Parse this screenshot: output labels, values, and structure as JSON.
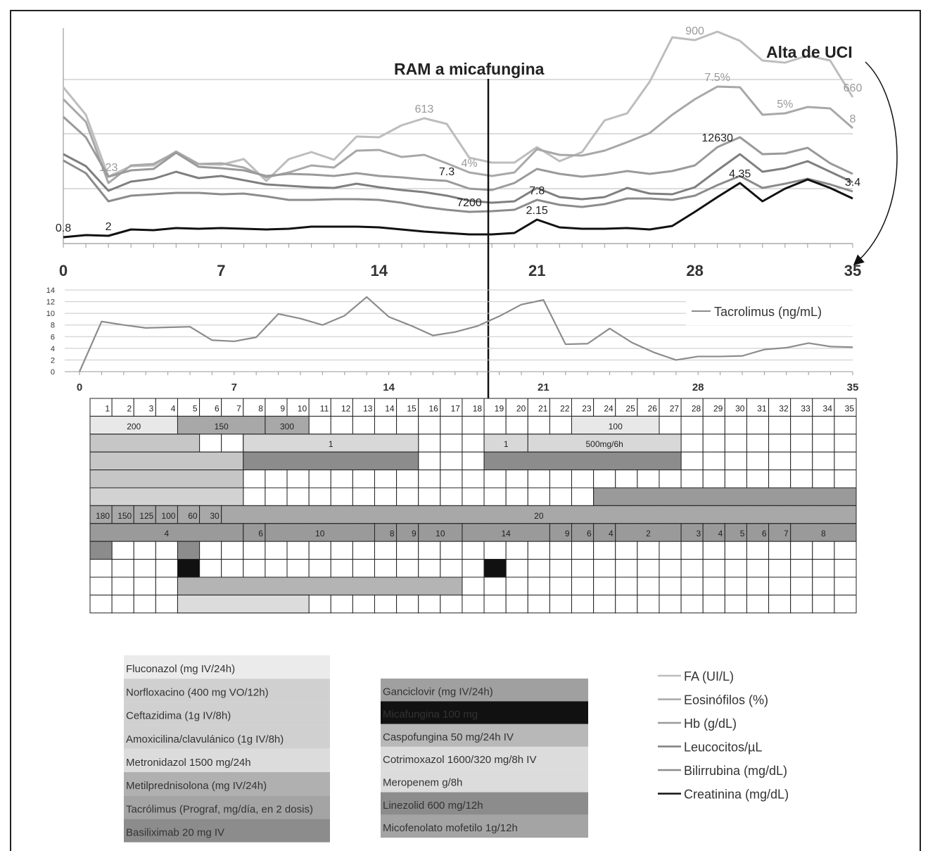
{
  "chart_data": [
    {
      "type": "line",
      "annotations": {
        "reaction": "RAM a micafungina",
        "discharge": "Alta de UCI"
      },
      "x_ticks": [
        "0",
        "7",
        "14",
        "21",
        "28",
        "35"
      ],
      "xlim": [
        0,
        35
      ],
      "grid": true,
      "legend_position": "right",
      "series": [
        {
          "name": "FA (UI/L)",
          "color": "#bdbdbd",
          "values": [
            222,
            183,
            95,
            110,
            111,
            131,
            113,
            112,
            120,
            89,
            120,
            130,
            119,
            152,
            151,
            168,
            178,
            170,
            122,
            115,
            115,
            137,
            117,
            130,
            175,
            185,
            230,
            293,
            289,
            301,
            288,
            260,
            257,
            267,
            260,
            208
          ],
          "labels": [
            {
              "i": 2,
              "text": "123"
            },
            {
              "i": 16,
              "text": "613"
            },
            {
              "i": 28,
              "text": "900"
            },
            {
              "i": 35,
              "text": "660"
            }
          ]
        },
        {
          "name": "Eosinófilos (%)",
          "color": "#a8a8a8",
          "values": [
            205,
            173,
            86,
            111,
            113,
            130,
            113,
            114,
            108,
            94,
            101,
            111,
            108,
            132,
            133,
            123,
            126,
            114,
            101,
            96,
            101,
            134,
            126,
            125,
            132,
            144,
            157,
            183,
            205,
            223,
            222,
            183,
            185,
            194,
            192,
            164
          ],
          "labels": [
            {
              "i": 18,
              "text": "4%"
            },
            {
              "i": 29,
              "text": "7.5%"
            },
            {
              "i": 32,
              "text": "5%"
            },
            {
              "i": 35,
              "text": "8"
            }
          ]
        },
        {
          "name": "Hb (g/dL)",
          "color": "#9a9a9a",
          "values": [
            180,
            151,
            95,
            104,
            106,
            129,
            109,
            107,
            104,
            96,
            99,
            98,
            96,
            100,
            96,
            94,
            91,
            89,
            78,
            76,
            86,
            106,
            99,
            95,
            98,
            103,
            99,
            103,
            111,
            137,
            151,
            127,
            128,
            136,
            114,
            99
          ],
          "labels": [
            {
              "i": 17,
              "text": "7.3"
            },
            {
              "i": 29,
              "text": "12630"
            }
          ]
        },
        {
          "name": "Leucocitos/µL",
          "color": "#7f7f7f",
          "values": [
            127,
            110,
            75,
            88,
            92,
            102,
            93,
            96,
            90,
            84,
            82,
            80,
            79,
            85,
            80,
            76,
            73,
            68,
            61,
            58,
            60,
            79,
            66,
            63,
            66,
            79,
            71,
            70,
            80,
            104,
            127,
            102,
            107,
            117,
            102,
            87
          ],
          "labels": []
        },
        {
          "name": "Bilirrubina (mg/dL)",
          "color": "#8c8c8c",
          "values": [
            118,
            100,
            60,
            68,
            70,
            72,
            72,
            70,
            71,
            67,
            62,
            62,
            63,
            63,
            62,
            58,
            52,
            48,
            45,
            46,
            48,
            62,
            55,
            52,
            56,
            64,
            64,
            62,
            68,
            83,
            96,
            79,
            85,
            92,
            84,
            74
          ],
          "labels": [
            {
              "i": 18,
              "text": "7200"
            },
            {
              "i": 21,
              "text": "7.8"
            },
            {
              "i": 35,
              "text": "3.4"
            }
          ]
        },
        {
          "name": "Creatinina (mg/dL)",
          "color": "#111111",
          "values": [
            9,
            12,
            11,
            20,
            19,
            22,
            21,
            22,
            21,
            20,
            21,
            24,
            24,
            24,
            23,
            20,
            17,
            15,
            13,
            13,
            15,
            34,
            23,
            21,
            21,
            22,
            20,
            25,
            45,
            66,
            86,
            60,
            78,
            91,
            79,
            64
          ],
          "labels": [
            {
              "i": 0,
              "text": "0.8"
            },
            {
              "i": 2,
              "text": "2"
            },
            {
              "i": 21,
              "text": "2.15"
            },
            {
              "i": 30,
              "text": "4.35"
            }
          ]
        }
      ]
    },
    {
      "type": "line",
      "series": [
        {
          "name": "Tacrolimus (ng/mL)",
          "color": "#8c8c8c",
          "values": [
            0,
            8.6,
            8.0,
            7.5,
            7.6,
            7.7,
            5.4,
            5.2,
            5.9,
            9.9,
            9.1,
            8.0,
            9.6,
            12.8,
            9.4,
            7.9,
            6.2,
            6.8,
            7.8,
            9.5,
            11.5,
            12.3,
            4.7,
            4.8,
            7.4,
            5.0,
            3.3,
            2.0,
            2.6,
            2.6,
            2.7,
            3.8,
            4.1,
            4.9,
            4.3,
            4.2
          ]
        }
      ],
      "x_ticks": [
        "0",
        "7",
        "14",
        "21",
        "28",
        "35"
      ],
      "y_ticks": [
        "0",
        "2",
        "4",
        "6",
        "8",
        "10",
        "12",
        "14"
      ],
      "xlim": [
        0,
        35
      ],
      "ylim": [
        0,
        14
      ],
      "grid": true,
      "legend_position": "right"
    },
    {
      "type": "table",
      "day_headers": [
        "1",
        "2",
        "3",
        "4",
        "5",
        "6",
        "7",
        "8",
        "9",
        "10",
        "11",
        "12",
        "13",
        "14",
        "15",
        "16",
        "17",
        "18",
        "19",
        "20",
        "21",
        "22",
        "23",
        "24",
        "25",
        "26",
        "27",
        "28",
        "29",
        "30",
        "31",
        "32",
        "33",
        "34",
        "35"
      ],
      "rows": [
        {
          "bars": [
            {
              "start": 1,
              "end": 4,
              "color": "#e8e8e8",
              "label": "200"
            },
            {
              "start": 5,
              "end": 8,
              "color": "#a8a8a8",
              "label": "150"
            },
            {
              "start": 9,
              "end": 10,
              "color": "#a8a8a8",
              "label": "300"
            },
            {
              "start": 23,
              "end": 26,
              "color": "#e8e8e8",
              "label": "100"
            }
          ]
        },
        {
          "bars": [
            {
              "start": 1,
              "end": 5,
              "color": "#c6c6c6",
              "label": ""
            },
            {
              "start": 8,
              "end": 15,
              "color": "#d8d8d8",
              "label": "1"
            },
            {
              "start": 19,
              "end": 20,
              "color": "#d8d8d8",
              "label": "1"
            },
            {
              "start": 21,
              "end": 27,
              "color": "#d8d8d8",
              "label": "500mg/6h"
            }
          ]
        },
        {
          "bars": [
            {
              "start": 1,
              "end": 7,
              "color": "#c6c6c6",
              "label": ""
            },
            {
              "start": 8,
              "end": 15,
              "color": "#8c8c8c",
              "label": ""
            },
            {
              "start": 19,
              "end": 27,
              "color": "#8c8c8c",
              "label": ""
            }
          ]
        },
        {
          "bars": [
            {
              "start": 1,
              "end": 7,
              "color": "#c6c6c6",
              "label": ""
            }
          ]
        },
        {
          "bars": [
            {
              "start": 1,
              "end": 7,
              "color": "#d2d2d2",
              "label": ""
            },
            {
              "start": 24,
              "end": 35,
              "color": "#9a9a9a",
              "label": ""
            }
          ]
        },
        {
          "bars": [
            {
              "start": 1,
              "end": 1,
              "color": "#a8a8a8",
              "label": "180"
            },
            {
              "start": 2,
              "end": 2,
              "color": "#a8a8a8",
              "label": "150"
            },
            {
              "start": 3,
              "end": 3,
              "color": "#a8a8a8",
              "label": "125"
            },
            {
              "start": 4,
              "end": 4,
              "color": "#a8a8a8",
              "label": "100"
            },
            {
              "start": 5,
              "end": 5,
              "color": "#a8a8a8",
              "label": "60"
            },
            {
              "start": 6,
              "end": 6,
              "color": "#a8a8a8",
              "label": "30"
            },
            {
              "start": 7,
              "end": 35,
              "color": "#a8a8a8",
              "label": "20"
            }
          ]
        },
        {
          "bars": [
            {
              "start": 1,
              "end": 7,
              "color": "#9a9a9a",
              "label": "4"
            },
            {
              "start": 8,
              "end": 8,
              "color": "#9a9a9a",
              "label": "6"
            },
            {
              "start": 9,
              "end": 13,
              "color": "#9a9a9a",
              "label": "10"
            },
            {
              "start": 14,
              "end": 14,
              "color": "#9a9a9a",
              "label": "8"
            },
            {
              "start": 15,
              "end": 15,
              "color": "#9a9a9a",
              "label": "9"
            },
            {
              "start": 16,
              "end": 17,
              "color": "#9a9a9a",
              "label": "10"
            },
            {
              "start": 18,
              "end": 21,
              "color": "#9a9a9a",
              "label": "14"
            },
            {
              "start": 22,
              "end": 22,
              "color": "#9a9a9a",
              "label": "9"
            },
            {
              "start": 23,
              "end": 23,
              "color": "#9a9a9a",
              "label": "6"
            },
            {
              "start": 24,
              "end": 24,
              "color": "#9a9a9a",
              "label": "4"
            },
            {
              "start": 25,
              "end": 27,
              "color": "#9a9a9a",
              "label": "2"
            },
            {
              "start": 28,
              "end": 28,
              "color": "#9a9a9a",
              "label": "3"
            },
            {
              "start": 29,
              "end": 29,
              "color": "#9a9a9a",
              "label": "4"
            },
            {
              "start": 30,
              "end": 30,
              "color": "#9a9a9a",
              "label": "5"
            },
            {
              "start": 31,
              "end": 31,
              "color": "#9a9a9a",
              "label": "6"
            },
            {
              "start": 32,
              "end": 32,
              "color": "#9a9a9a",
              "label": "7"
            },
            {
              "start": 33,
              "end": 35,
              "color": "#9a9a9a",
              "label": "8"
            }
          ]
        },
        {
          "bars": [
            {
              "start": 1,
              "end": 1,
              "color": "#8c8c8c",
              "label": ""
            },
            {
              "start": 5,
              "end": 5,
              "color": "#8c8c8c",
              "label": ""
            }
          ]
        },
        {
          "bars": [
            {
              "start": 5,
              "end": 5,
              "color": "#111111",
              "label": ""
            },
            {
              "start": 19,
              "end": 19,
              "color": "#111111",
              "label": ""
            }
          ]
        },
        {
          "bars": [
            {
              "start": 5,
              "end": 17,
              "color": "#b4b4b4",
              "label": ""
            }
          ]
        },
        {
          "bars": [
            {
              "start": 5,
              "end": 10,
              "color": "#dcdcdc",
              "label": ""
            }
          ]
        }
      ]
    }
  ],
  "drug_legend_left": [
    {
      "label": "Fluconazol (mg IV/24h)",
      "color": "#ebebeb"
    },
    {
      "label": "Norfloxacino (400 mg VO/12h)",
      "color": "#d0d0d0"
    },
    {
      "label": "Ceftazidima (1g IV/8h)",
      "color": "#d0d0d0"
    },
    {
      "label": "Amoxicilina/clavulánico (1g IV/8h)",
      "color": "#d0d0d0"
    },
    {
      "label": "Metronidazol 1500 mg/24h",
      "color": "#dcdcdc"
    },
    {
      "label": "Metilprednisolona (mg IV/24h)",
      "color": "#b0b0b0"
    },
    {
      "label": "Tacrólimus (Prograf, mg/día, en 2 dosis)",
      "color": "#a4a4a4"
    },
    {
      "label": "Basiliximab 20 mg IV",
      "color": "#8c8c8c"
    }
  ],
  "drug_legend_right": [
    {
      "label": "Ganciclovir (mg IV/24h)",
      "color": "#a0a0a0"
    },
    {
      "label": "Micafungina 100 mg",
      "color": "#111111",
      "text_color": "#ffffff"
    },
    {
      "label": "Caspofungina 50 mg/24h IV",
      "color": "#b8b8b8"
    },
    {
      "label": "Cotrimoxazol 1600/320 mg/8h IV",
      "color": "#dcdcdc"
    },
    {
      "label": "Meropenem g/8h",
      "color": "#dcdcdc"
    },
    {
      "label": "Linezolid 600 mg/12h",
      "color": "#8c8c8c"
    },
    {
      "label": "Micofenolato mofetilo 1g/12h",
      "color": "#a4a4a4"
    }
  ],
  "line_legend": [
    {
      "label": "FA (UI/L)",
      "color": "#bdbdbd"
    },
    {
      "label": "Eosinófilos (%)",
      "color": "#a8a8a8"
    },
    {
      "label": "Hb (g/dL)",
      "color": "#9a9a9a"
    },
    {
      "label": "Leucocitos/µL",
      "color": "#7f7f7f"
    },
    {
      "label": "Bilirrubina (mg/dL)",
      "color": "#8c8c8c"
    },
    {
      "label": "Creatinina (mg/dL)",
      "color": "#111111"
    }
  ]
}
